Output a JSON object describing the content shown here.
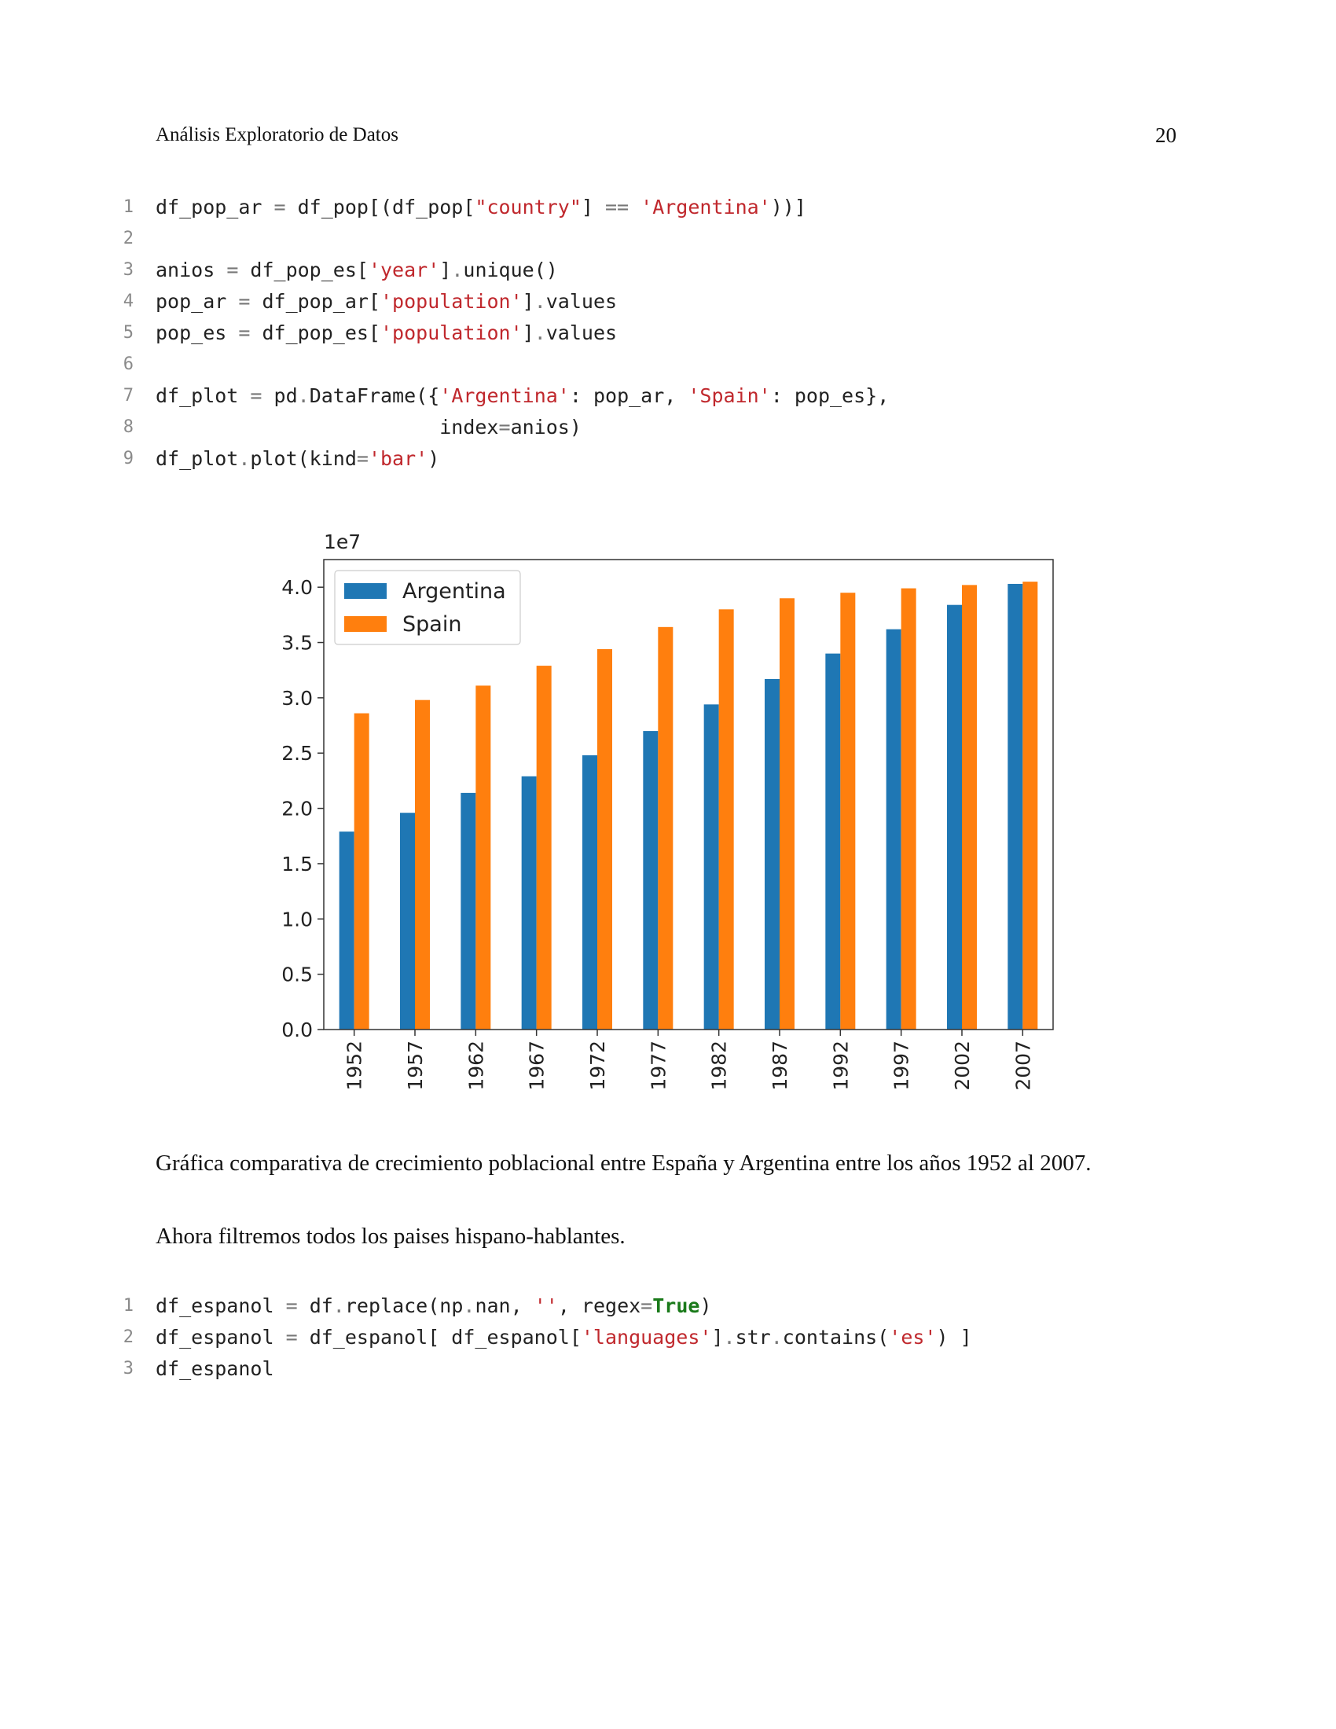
{
  "header": {
    "title": "Análisis Exploratorio de Datos",
    "page_number": "20"
  },
  "code_block_1": [
    {
      "n": "1",
      "tokens": [
        [
          "t",
          "df_pop_ar "
        ],
        [
          "o",
          "="
        ],
        [
          "t",
          " df_pop[(df_pop["
        ],
        [
          "s",
          "\"country\""
        ],
        [
          "t",
          "] "
        ],
        [
          "o",
          "=="
        ],
        [
          "t",
          " "
        ],
        [
          "s",
          "'Argentina'"
        ],
        [
          "t",
          "))]"
        ]
      ]
    },
    {
      "n": "2",
      "tokens": []
    },
    {
      "n": "3",
      "tokens": [
        [
          "t",
          "anios "
        ],
        [
          "o",
          "="
        ],
        [
          "t",
          " df_pop_es["
        ],
        [
          "s",
          "'year'"
        ],
        [
          "t",
          "]"
        ],
        [
          "o",
          "."
        ],
        [
          "t",
          "unique()"
        ]
      ]
    },
    {
      "n": "4",
      "tokens": [
        [
          "t",
          "pop_ar "
        ],
        [
          "o",
          "="
        ],
        [
          "t",
          " df_pop_ar["
        ],
        [
          "s",
          "'population'"
        ],
        [
          "t",
          "]"
        ],
        [
          "o",
          "."
        ],
        [
          "t",
          "values"
        ]
      ]
    },
    {
      "n": "5",
      "tokens": [
        [
          "t",
          "pop_es "
        ],
        [
          "o",
          "="
        ],
        [
          "t",
          " df_pop_es["
        ],
        [
          "s",
          "'population'"
        ],
        [
          "t",
          "]"
        ],
        [
          "o",
          "."
        ],
        [
          "t",
          "values"
        ]
      ]
    },
    {
      "n": "6",
      "tokens": []
    },
    {
      "n": "7",
      "tokens": [
        [
          "t",
          "df_plot "
        ],
        [
          "o",
          "="
        ],
        [
          "t",
          " pd"
        ],
        [
          "o",
          "."
        ],
        [
          "t",
          "DataFrame({"
        ],
        [
          "s",
          "'Argentina'"
        ],
        [
          "t",
          ": pop_ar, "
        ],
        [
          "s",
          "'Spain'"
        ],
        [
          "t",
          ": pop_es},"
        ]
      ]
    },
    {
      "n": "8",
      "tokens": [
        [
          "t",
          "                        index"
        ],
        [
          "o",
          "="
        ],
        [
          "t",
          "anios)"
        ]
      ]
    },
    {
      "n": "9",
      "tokens": [
        [
          "t",
          "df_plot"
        ],
        [
          "o",
          "."
        ],
        [
          "t",
          "plot(kind"
        ],
        [
          "o",
          "="
        ],
        [
          "s",
          "'bar'"
        ],
        [
          "t",
          ")"
        ]
      ]
    }
  ],
  "chart_data": {
    "type": "bar",
    "title": "",
    "xlabel": "",
    "ylabel": "",
    "offset_text": "1e7",
    "categories": [
      "1952",
      "1957",
      "1962",
      "1967",
      "1972",
      "1977",
      "1982",
      "1987",
      "1992",
      "1997",
      "2002",
      "2007"
    ],
    "series": [
      {
        "name": "Argentina",
        "color": "#1f77b4",
        "values": [
          1.79,
          1.96,
          2.14,
          2.29,
          2.48,
          2.7,
          2.94,
          3.17,
          3.4,
          3.62,
          3.84,
          4.03
        ]
      },
      {
        "name": "Spain",
        "color": "#ff7f0e",
        "values": [
          2.86,
          2.98,
          3.11,
          3.29,
          3.44,
          3.64,
          3.8,
          3.9,
          3.95,
          3.99,
          4.02,
          4.05
        ]
      }
    ],
    "ylim": [
      0,
      4.25
    ],
    "yticks": [
      "0.0",
      "0.5",
      "1.0",
      "1.5",
      "2.0",
      "2.5",
      "3.0",
      "3.5",
      "4.0"
    ],
    "legend_position": "top-left",
    "grid": false
  },
  "caption": "Gráfica comparativa de crecimiento poblacional entre España y Argentina entre los años 1952 al 2007.",
  "paragraph": "Ahora filtremos todos los paises hispano-hablantes.",
  "code_block_2": [
    {
      "n": "1",
      "tokens": [
        [
          "t",
          "df_espanol "
        ],
        [
          "o",
          "="
        ],
        [
          "t",
          " df"
        ],
        [
          "o",
          "."
        ],
        [
          "t",
          "replace(np"
        ],
        [
          "o",
          "."
        ],
        [
          "t",
          "nan, "
        ],
        [
          "s",
          "''"
        ],
        [
          "t",
          ", regex"
        ],
        [
          "o",
          "="
        ],
        [
          "k",
          "True"
        ],
        [
          "t",
          ")"
        ]
      ]
    },
    {
      "n": "2",
      "tokens": [
        [
          "t",
          "df_espanol "
        ],
        [
          "o",
          "="
        ],
        [
          "t",
          " df_espanol[ df_espanol["
        ],
        [
          "s",
          "'languages'"
        ],
        [
          "t",
          "]"
        ],
        [
          "o",
          "."
        ],
        [
          "t",
          "str"
        ],
        [
          "o",
          "."
        ],
        [
          "t",
          "contains("
        ],
        [
          "s",
          "'es'"
        ],
        [
          "t",
          ") ]"
        ]
      ]
    },
    {
      "n": "3",
      "tokens": [
        [
          "t",
          "df_espanol"
        ]
      ]
    }
  ]
}
